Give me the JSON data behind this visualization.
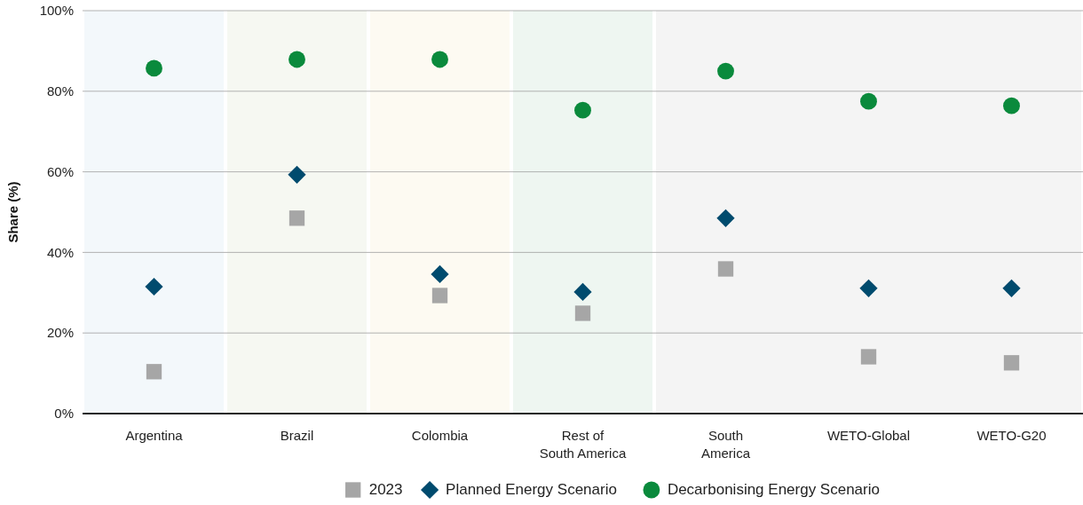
{
  "chart_data": {
    "type": "scatter",
    "ylabel": "Share (%)",
    "categories": [
      "Argentina",
      "Brazil",
      "Colombia",
      "Rest of South America",
      "South America",
      "WETO-Global",
      "WETO-G20"
    ],
    "series": [
      {
        "name": "2023",
        "color": "#a6a6a6",
        "marker": "square",
        "values": [
          10.4,
          48.5,
          29.3,
          24.9,
          35.9,
          14.1,
          12.6
        ]
      },
      {
        "name": "Planned Energy Scenario",
        "color": "#004b6e",
        "marker": "diamond",
        "values": [
          31.5,
          59.3,
          34.6,
          30.2,
          48.5,
          31.1,
          31.1
        ]
      },
      {
        "name": "Decarbonising Energy Scenario",
        "color": "#0a8a3c",
        "marker": "circle",
        "values": [
          85.7,
          87.9,
          87.9,
          75.3,
          85.0,
          77.5,
          76.4
        ]
      }
    ],
    "ylim": [
      0,
      100
    ],
    "yticks": [
      {
        "value": 0,
        "label": "0%"
      },
      {
        "value": 20,
        "label": "20%"
      },
      {
        "value": 40,
        "label": "40%"
      },
      {
        "value": 60,
        "label": "60%"
      },
      {
        "value": 80,
        "label": "80%"
      },
      {
        "value": 100,
        "label": "100%"
      }
    ],
    "bands": [
      {
        "axis": "x",
        "from": "Argentina",
        "to": "Argentina",
        "color": "#f3f8fb"
      },
      {
        "axis": "x",
        "from": "Brazil",
        "to": "Brazil",
        "color": "#f6f8f2"
      },
      {
        "axis": "x",
        "from": "Colombia",
        "to": "Colombia",
        "color": "#fdfaf2"
      },
      {
        "axis": "x",
        "from": "Rest of South America",
        "to": "Rest of South America",
        "color": "#eef6f1"
      },
      {
        "axis": "x",
        "from": "South America",
        "to": "WETO-G20",
        "color": "#f4f4f4"
      }
    ],
    "grid": "y",
    "legend": "bottom"
  }
}
